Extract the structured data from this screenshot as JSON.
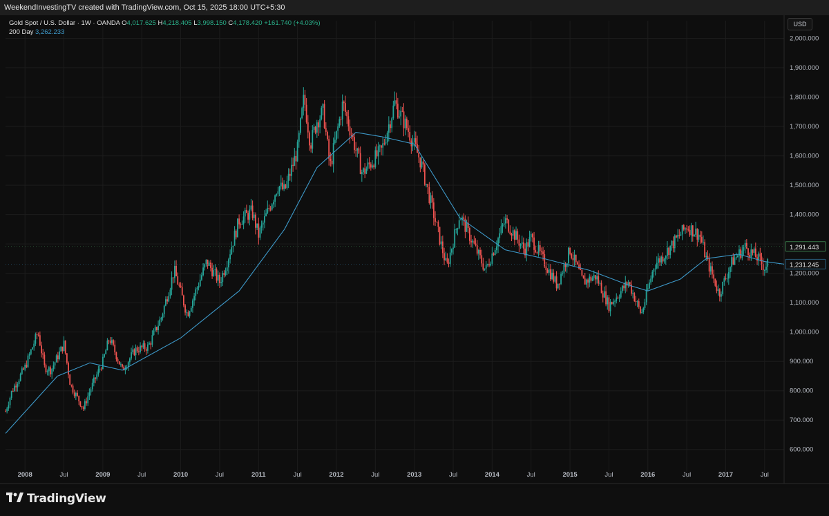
{
  "header": {
    "credit": "WeekendInvestingTV created with TradingView.com, Oct 15, 2025 18:00 UTC+5:30"
  },
  "legend": {
    "symbol": "Gold Spot / U.S. Dollar · 1W · OANDA",
    "open_label": "O",
    "open": "4,017.625",
    "high_label": "H",
    "high": "4,218.405",
    "low_label": "L",
    "low": "3,998.150",
    "close_label": "C",
    "close": "4,178.420",
    "change": "+161.740 (+4.03%)",
    "ma_label": "200 Day",
    "ma_value": "3,262.233"
  },
  "currency_button": "USD",
  "brand": "TradingView",
  "colors": {
    "background": "#0e0e0e",
    "up": "#26a69a",
    "down": "#ef5350",
    "ma": "#3d98c8",
    "price_badge": "#3a7a4a",
    "ma_badge": "#2a5f7e"
  },
  "chart_data": {
    "type": "candlestick",
    "title": "Gold Spot / U.S. Dollar · 1W · OANDA",
    "interval": "1W",
    "currency": "USD",
    "ylim": [
      550,
      2060
    ],
    "y_ticks": [
      600,
      700,
      800,
      900,
      1000,
      1100,
      1200,
      1300,
      1400,
      1500,
      1600,
      1700,
      1800,
      1900,
      2000
    ],
    "y_tick_labels": [
      "600.000",
      "700.000",
      "800.000",
      "900.000",
      "1,000.000",
      "1,100.000",
      "1,200.000",
      "1,300.000",
      "1,400.000",
      "1,500.000",
      "1,600.000",
      "1,700.000",
      "1,800.000",
      "1,900.000",
      "2,000.000"
    ],
    "x_ticks": [
      "2008",
      "Jul",
      "2009",
      "Jul",
      "2010",
      "Jul",
      "2011",
      "Jul",
      "2012",
      "Jul",
      "2013",
      "Jul",
      "2014",
      "Jul",
      "2015",
      "Jul",
      "2016",
      "Jul",
      "2017",
      "Jul"
    ],
    "x_tick_dates": [
      "2008-01",
      "2008-07",
      "2009-01",
      "2009-07",
      "2010-01",
      "2010-07",
      "2011-01",
      "2011-07",
      "2012-01",
      "2012-07",
      "2013-01",
      "2013-07",
      "2014-01",
      "2014-07",
      "2015-01",
      "2015-07",
      "2016-01",
      "2016-07",
      "2017-01",
      "2017-07"
    ],
    "x_range": [
      "2007-10",
      "2017-10"
    ],
    "grid": true,
    "price_path": {
      "description_dates": [
        "2007-10",
        "2007-11",
        "2008-01",
        "2008-03",
        "2008-04",
        "2008-05",
        "2008-07",
        "2008-08",
        "2008-09",
        "2008-10",
        "2008-11",
        "2009-01",
        "2009-02",
        "2009-04",
        "2009-06",
        "2009-08",
        "2009-10",
        "2009-12",
        "2010-02",
        "2010-05",
        "2010-07",
        "2010-08",
        "2010-10",
        "2010-12",
        "2011-01",
        "2011-04",
        "2011-05",
        "2011-07",
        "2011-08",
        "2011-09",
        "2011-10",
        "2011-11",
        "2011-12",
        "2012-02",
        "2012-05",
        "2012-08",
        "2012-10",
        "2012-12",
        "2013-02",
        "2013-04",
        "2013-06",
        "2013-08",
        "2013-12",
        "2014-03",
        "2014-06",
        "2014-07",
        "2014-11",
        "2015-01",
        "2015-03",
        "2015-05",
        "2015-07",
        "2015-10",
        "2015-12",
        "2016-02",
        "2016-03",
        "2016-07",
        "2016-09",
        "2016-10",
        "2016-12",
        "2017-02",
        "2017-04",
        "2017-06",
        "2017-07",
        "2017-09",
        "2017-10"
      ],
      "close": [
        730,
        800,
        880,
        1000,
        880,
        870,
        960,
        820,
        780,
        740,
        800,
        900,
        980,
        870,
        940,
        950,
        1050,
        1210,
        1060,
        1240,
        1170,
        1230,
        1380,
        1410,
        1330,
        1500,
        1480,
        1620,
        1800,
        1640,
        1720,
        1750,
        1560,
        1780,
        1540,
        1620,
        1780,
        1690,
        1580,
        1400,
        1220,
        1400,
        1210,
        1380,
        1280,
        1320,
        1160,
        1280,
        1170,
        1190,
        1090,
        1170,
        1060,
        1230,
        1250,
        1360,
        1330,
        1250,
        1130,
        1240,
        1290,
        1250,
        1220,
        1290,
        1291
      ]
    },
    "last_price": 1291.443,
    "last_price_label": "1,291.443",
    "ma": {
      "name": "200 Day",
      "dates": [
        "2007-10",
        "2008-06",
        "2008-11",
        "2009-04",
        "2010-01",
        "2010-10",
        "2011-05",
        "2011-10",
        "2012-04",
        "2012-08",
        "2013-01",
        "2013-08",
        "2014-03",
        "2014-09",
        "2015-04",
        "2015-10",
        "2016-01",
        "2016-06",
        "2016-10",
        "2017-03",
        "2017-07",
        "2017-10"
      ],
      "values": [
        655,
        850,
        895,
        870,
        980,
        1140,
        1350,
        1560,
        1680,
        1665,
        1640,
        1390,
        1280,
        1250,
        1210,
        1160,
        1140,
        1180,
        1250,
        1265,
        1240,
        1231.245
      ],
      "last_label": "1,231.245"
    }
  }
}
